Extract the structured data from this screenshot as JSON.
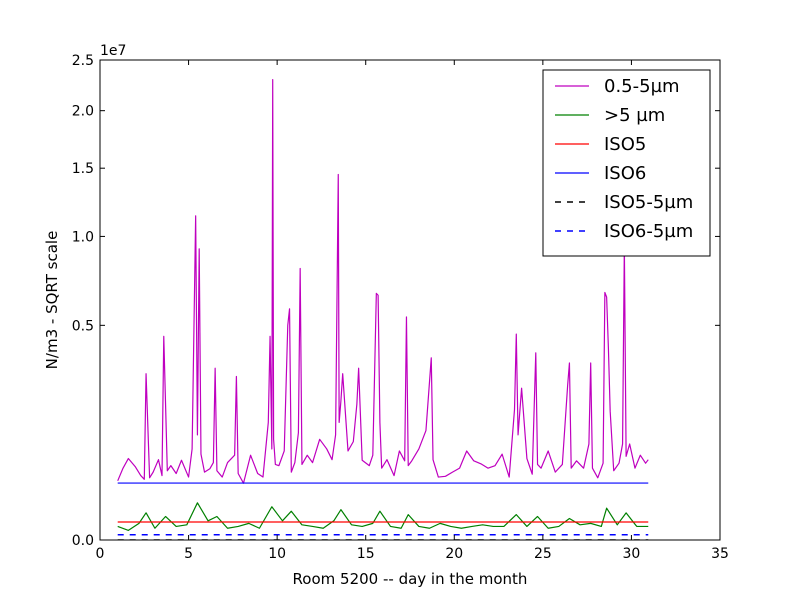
{
  "chart_data": {
    "type": "line",
    "xlabel": "Room 5200 -- day in the month",
    "ylabel": "N/m3 - SQRT scale",
    "y_multiplier_label": "1e7",
    "x_scale": "linear",
    "y_scale": "sqrt",
    "xlim": [
      0,
      35
    ],
    "ylim": [
      0,
      25000000
    ],
    "x_ticks": [
      0,
      5,
      10,
      15,
      20,
      25,
      30,
      35
    ],
    "x_tick_labels": [
      "0",
      "5",
      "10",
      "15",
      "20",
      "25",
      "30",
      "35"
    ],
    "y_ticks": [
      0,
      5000000,
      10000000,
      15000000,
      20000000,
      25000000
    ],
    "y_tick_labels": [
      "0.0",
      "0.5",
      "1.0",
      "1.5",
      "2.0",
      "2.5"
    ],
    "grid": false,
    "legend_position": "top-right",
    "series": [
      {
        "name": "0.5-5µm",
        "color": "#bf00bf",
        "style": "solid",
        "x": [
          1.0,
          1.3,
          1.6,
          2.0,
          2.3,
          2.5,
          2.6,
          2.8,
          3.0,
          3.3,
          3.5,
          3.6,
          3.8,
          4.0,
          4.3,
          4.6,
          5.0,
          5.2,
          5.4,
          5.5,
          5.6,
          5.7,
          5.9,
          6.2,
          6.4,
          6.5,
          6.6,
          6.9,
          7.2,
          7.6,
          7.7,
          7.8,
          8.1,
          8.5,
          8.9,
          9.2,
          9.5,
          9.6,
          9.7,
          9.75,
          9.8,
          9.9,
          10.1,
          10.4,
          10.6,
          10.7,
          10.8,
          11.0,
          11.2,
          11.3,
          11.4,
          11.7,
          12.0,
          12.4,
          12.8,
          13.1,
          13.3,
          13.45,
          13.5,
          13.6,
          13.7,
          14.0,
          14.3,
          14.5,
          14.6,
          14.8,
          15.2,
          15.4,
          15.6,
          15.7,
          15.8,
          15.9,
          16.2,
          16.6,
          16.9,
          17.2,
          17.3,
          17.4,
          17.6,
          18.0,
          18.4,
          18.7,
          18.8,
          19.1,
          19.5,
          19.9,
          20.3,
          20.7,
          21.1,
          21.5,
          21.9,
          22.3,
          22.7,
          23.1,
          23.4,
          23.5,
          23.6,
          23.8,
          24.1,
          24.4,
          24.6,
          24.7,
          24.9,
          25.3,
          25.7,
          26.1,
          26.4,
          26.5,
          26.6,
          26.9,
          27.3,
          27.6,
          27.7,
          27.8,
          28.1,
          28.4,
          28.5,
          28.6,
          28.7,
          28.8,
          29.0,
          29.3,
          29.5,
          29.6,
          29.7,
          29.9,
          30.2,
          30.5,
          30.8,
          30.95
        ],
        "y": [
          380000,
          560000,
          720000,
          580000,
          450000,
          400000,
          3000000,
          420000,
          500000,
          700000,
          450000,
          4500000,
          520000,
          600000,
          480000,
          690000,
          430000,
          900000,
          11400000,
          1200000,
          9200000,
          800000,
          500000,
          550000,
          650000,
          3200000,
          520000,
          430000,
          650000,
          780000,
          2900000,
          480000,
          350000,
          780000,
          480000,
          430000,
          1500000,
          4500000,
          900000,
          23000000,
          1100000,
          620000,
          600000,
          860000,
          5000000,
          5800000,
          500000,
          650000,
          1250000,
          8000000,
          620000,
          780000,
          650000,
          1100000,
          900000,
          700000,
          1200000,
          14500000,
          1500000,
          2100000,
          3000000,
          860000,
          1050000,
          2000000,
          3200000,
          690000,
          600000,
          780000,
          6600000,
          6500000,
          1500000,
          560000,
          700000,
          450000,
          860000,
          680000,
          5400000,
          600000,
          680000,
          900000,
          1300000,
          3600000,
          700000,
          430000,
          440000,
          500000,
          560000,
          860000,
          680000,
          630000,
          560000,
          600000,
          800000,
          430000,
          1850000,
          4600000,
          1200000,
          2500000,
          720000,
          470000,
          3800000,
          620000,
          560000,
          860000,
          500000,
          620000,
          2600000,
          3400000,
          560000,
          680000,
          560000,
          1000000,
          3400000,
          560000,
          420000,
          640000,
          6650000,
          6400000,
          4000000,
          1800000,
          520000,
          640000,
          1000000,
          9400000,
          760000,
          1000000,
          560000,
          780000,
          640000,
          700000
        ]
      },
      {
        "name": ">5 µm",
        "color": "#008000",
        "style": "solid",
        "x": [
          1.0,
          1.6,
          2.2,
          2.6,
          3.1,
          3.7,
          4.3,
          4.9,
          5.5,
          6.1,
          6.6,
          7.2,
          7.8,
          8.4,
          9.0,
          9.7,
          10.3,
          10.8,
          11.4,
          12.0,
          12.6,
          13.2,
          13.6,
          14.2,
          14.8,
          15.4,
          15.8,
          16.4,
          17.0,
          17.4,
          18.0,
          18.6,
          19.2,
          19.8,
          20.4,
          21.0,
          21.6,
          22.2,
          22.8,
          23.5,
          24.1,
          24.7,
          25.3,
          25.9,
          26.5,
          27.1,
          27.7,
          28.3,
          28.6,
          29.2,
          29.7,
          30.3,
          30.95
        ],
        "y": [
          20000,
          10000,
          30000,
          80000,
          15000,
          60000,
          20000,
          25000,
          150000,
          40000,
          60000,
          15000,
          20000,
          30000,
          15000,
          120000,
          40000,
          90000,
          25000,
          20000,
          15000,
          40000,
          100000,
          25000,
          20000,
          30000,
          90000,
          20000,
          15000,
          70000,
          20000,
          15000,
          30000,
          20000,
          15000,
          20000,
          25000,
          20000,
          20000,
          70000,
          20000,
          60000,
          15000,
          20000,
          50000,
          25000,
          30000,
          20000,
          110000,
          25000,
          80000,
          20000,
          20000
        ]
      },
      {
        "name": "ISO5",
        "color": "#ff0000",
        "style": "solid",
        "x": [
          1.0,
          30.95
        ],
        "y": [
          35200,
          35200
        ]
      },
      {
        "name": "ISO6",
        "color": "#0000ff",
        "style": "solid",
        "x": [
          1.0,
          30.95
        ],
        "y": [
          352000,
          352000
        ]
      },
      {
        "name": "ISO5-5µm",
        "color": "#000000",
        "style": "dashed",
        "x": [
          1.0,
          30.95
        ],
        "y": [
          0,
          0
        ]
      },
      {
        "name": "ISO6-5µm",
        "color": "#0000ff",
        "style": "dashed",
        "x": [
          1.0,
          30.95
        ],
        "y": [
          2930,
          2930
        ]
      }
    ]
  }
}
